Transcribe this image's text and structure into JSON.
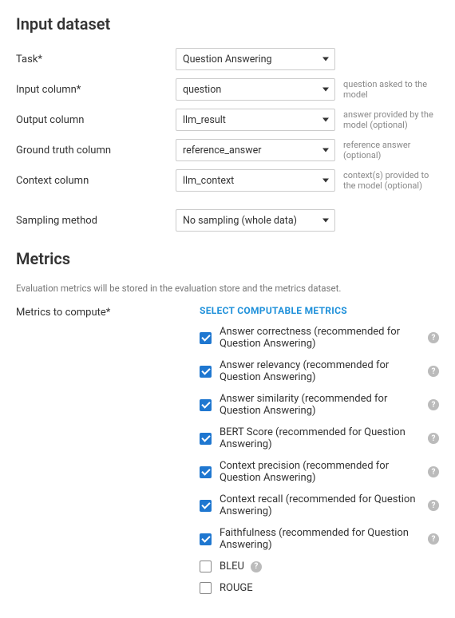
{
  "sections": {
    "input_dataset_title": "Input dataset",
    "metrics_title": "Metrics"
  },
  "fields": {
    "task": {
      "label": "Task*",
      "value": "Question Answering",
      "helper": ""
    },
    "input_column": {
      "label": "Input column*",
      "value": "question",
      "helper": "question asked to the model"
    },
    "output_column": {
      "label": "Output column",
      "value": "llm_result",
      "helper": "answer provided by the model (optional)"
    },
    "ground_truth_column": {
      "label": "Ground truth column",
      "value": "reference_answer",
      "helper": "reference answer (optional)"
    },
    "context_column": {
      "label": "Context column",
      "value": "llm_context",
      "helper": "context(s) provided to the model (optional)"
    },
    "sampling_method": {
      "label": "Sampling method",
      "value": "No sampling (whole data)",
      "helper": ""
    }
  },
  "metrics": {
    "note": "Evaluation metrics will be stored in the evaluation store and the metrics dataset.",
    "label": "Metrics to compute*",
    "select_link": "SELECT COMPUTABLE METRICS",
    "items": [
      {
        "label": "Answer correctness (recommended for Question Answering)",
        "checked": true,
        "help": true
      },
      {
        "label": "Answer relevancy (recommended for Question Answering)",
        "checked": true,
        "help": true
      },
      {
        "label": "Answer similarity (recommended for Question Answering)",
        "checked": true,
        "help": true
      },
      {
        "label": "BERT Score (recommended for Question Answering)",
        "checked": true,
        "help": true
      },
      {
        "label": "Context precision (recommended for Question Answering)",
        "checked": true,
        "help": true
      },
      {
        "label": "Context recall (recommended for Question Answering)",
        "checked": true,
        "help": true
      },
      {
        "label": "Faithfulness (recommended for Question Answering)",
        "checked": true,
        "help": true
      },
      {
        "label": "BLEU",
        "checked": false,
        "help": true
      },
      {
        "label": "ROUGE",
        "checked": false,
        "help": false
      }
    ]
  },
  "colors": {
    "accent": "#1f77d0",
    "link": "#1e90da",
    "border": "#cccccc",
    "text": "#333333",
    "muted": "#888888",
    "help_bg": "#bbbbbb"
  }
}
